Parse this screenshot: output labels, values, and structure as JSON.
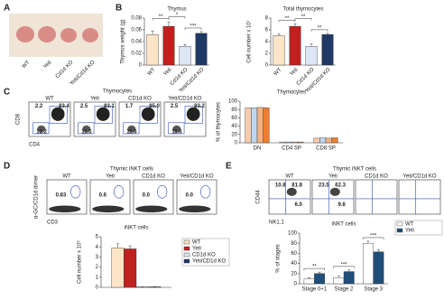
{
  "panel_letters": [
    "A",
    "B",
    "C",
    "D",
    "E"
  ],
  "photo": {
    "labels": [
      "WT",
      "Yeti",
      "Cd1d KO",
      "Yeti/Cd1d KO"
    ]
  },
  "chart_data": [
    {
      "type": "bar",
      "title": "Thymus",
      "y_label": "Thymus weight (g)",
      "categories": [
        "WT",
        "Yeti",
        "Cd1d KO",
        "Yeti/Cd1d KO"
      ],
      "values": [
        0.052,
        0.066,
        0.032,
        0.054
      ],
      "errors": [
        0.006,
        0.007,
        0.003,
        0.003
      ],
      "colors": [
        "#fce4c6",
        "#c0211f",
        "#dce6f4",
        "#1f3864"
      ],
      "ylim": [
        0,
        0.08
      ],
      "yticks": [
        0,
        0.02,
        0.04,
        0.06,
        0.08
      ],
      "annotations": [
        "**",
        "*",
        "***"
      ]
    },
    {
      "type": "bar",
      "title": "Total thymocytes",
      "y_label": "Cell number x 10⁷",
      "categories": [
        "WT",
        "Yeti",
        "Cd1d KO",
        "Yeti/Cd1d KO"
      ],
      "values": [
        5,
        6.6,
        3.2,
        5.2
      ],
      "errors": [
        0.3,
        0.4,
        0.4,
        0.2
      ],
      "colors": [
        "#fce4c6",
        "#c0211f",
        "#dce6f4",
        "#1f3864"
      ],
      "ylim": [
        0,
        8
      ],
      "yticks": [
        0,
        2,
        4,
        6,
        8
      ],
      "annotations": [
        "**",
        "**",
        "**"
      ]
    },
    {
      "type": "bar",
      "title": "Thymocytes",
      "y_label": "% of thymocytes",
      "categories": [
        "DN",
        "CD4 SP",
        "CD8 SP"
      ],
      "series": [
        {
          "color": "#f8cbad",
          "values": [
            84,
            2,
            11
          ]
        },
        {
          "color": "#bdd7ee",
          "values": [
            84,
            2,
            12
          ]
        },
        {
          "color": "#f4b183",
          "values": [
            85,
            2,
            11
          ]
        },
        {
          "color": "#ed7d31",
          "values": [
            84,
            2,
            12
          ]
        }
      ],
      "ylim": [
        0,
        100
      ],
      "yticks": [
        0,
        20,
        40,
        60,
        80,
        100
      ]
    },
    {
      "type": "bar",
      "title": "iNKT cells",
      "y_label": "Cell number x 10⁵",
      "categories": [
        null
      ],
      "series": [
        {
          "name": "WT",
          "color": "#fce4c6",
          "values": [
            3.9
          ],
          "errors": [
            0.4
          ]
        },
        {
          "name": "Yeti",
          "color": "#c0211f",
          "values": [
            3.8
          ],
          "errors": [
            0.3
          ]
        },
        {
          "name": "CD1d KO",
          "color": "#dce6f4",
          "values": [
            0.05
          ],
          "errors": [
            0.02
          ]
        },
        {
          "name": "Yeti/CD1d KO",
          "color": "#1f3864",
          "values": [
            0.05
          ],
          "errors": [
            0.02
          ]
        }
      ],
      "ylim": [
        0,
        5
      ],
      "yticks": [
        0,
        1,
        2,
        3,
        4,
        5
      ],
      "legend": true
    },
    {
      "type": "bar",
      "title": "iNKT cells",
      "y_label": "% of stages",
      "categories": [
        "Stage 0+1",
        "Stage 2",
        "Stage 3"
      ],
      "series": [
        {
          "name": "WT",
          "color": "#ffffff",
          "values": [
            10,
            12,
            80
          ],
          "errors": [
            2,
            3,
            4
          ]
        },
        {
          "name": "Yeti",
          "color": "#1f4e79",
          "values": [
            20,
            24,
            63
          ],
          "errors": [
            3,
            3,
            4
          ]
        }
      ],
      "ylim": [
        0,
        100
      ],
      "yticks": [
        0,
        20,
        40,
        60,
        80,
        100
      ],
      "legend": true,
      "annotations": [
        "**",
        "***",
        "***"
      ]
    }
  ],
  "flow": [
    {
      "title": "Thymocytes",
      "y_label": "CD8",
      "x_label": "CD4",
      "plots": [
        {
          "label": "WT",
          "numbers": [
            "2.2",
            "83.4",
            "12.2"
          ]
        },
        {
          "label": "Yeti",
          "numbers": [
            "2.5",
            "83.1",
            "11.5"
          ]
        },
        {
          "label": "CD1d KO",
          "numbers": [
            "1.7",
            "85.0",
            "11.6"
          ]
        },
        {
          "label": "Yeti/CD1d KO",
          "numbers": [
            "2.5",
            "83.2",
            "11.6"
          ]
        }
      ]
    },
    {
      "title": "Thymic iNKT cells",
      "y_label": "α-GC/CD1d dimer",
      "x_label": "CD3",
      "plots": [
        {
          "label": "WT",
          "numbers": [
            "0.83"
          ]
        },
        {
          "label": "Yeti",
          "numbers": [
            "0.6"
          ]
        },
        {
          "label": "CD1d KO",
          "numbers": [
            "0.0"
          ]
        },
        {
          "label": "Yeti/CD1d KO",
          "numbers": [
            "0.0"
          ]
        }
      ]
    },
    {
      "title": "Thymic iNKT cells",
      "y_label": "CD44",
      "x_label": "NK1.1",
      "plots": [
        {
          "label": "WT",
          "numbers": [
            "10.8",
            "81.8",
            "6.0"
          ]
        },
        {
          "label": "Yeti",
          "numbers": [
            "23.5",
            "62.3",
            "9.6"
          ]
        },
        {
          "label": "CD1d KO",
          "numbers": []
        },
        {
          "label": "Yeti/CD1d KO",
          "numbers": []
        }
      ]
    }
  ]
}
